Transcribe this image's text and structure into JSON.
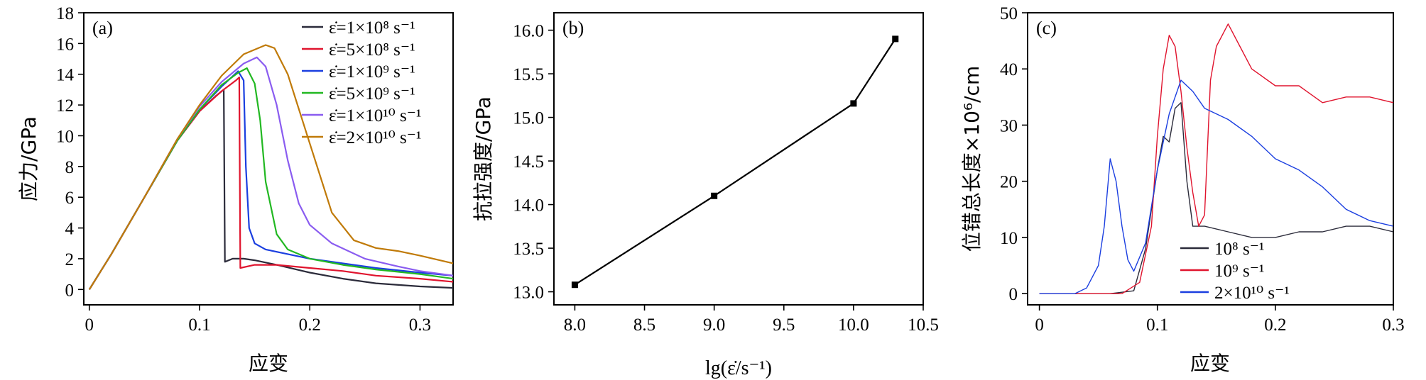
{
  "chart_data": [
    {
      "id": "a",
      "type": "line",
      "panel_label": "(a)",
      "xlabel": "应变",
      "ylabel": "应力/GPa",
      "xlim": [
        -0.005,
        0.33
      ],
      "ylim": [
        -1.0,
        18.0
      ],
      "xticks": [
        {
          "v": 0,
          "label": "0"
        },
        {
          "v": 0.1,
          "label": "0.1"
        },
        {
          "v": 0.2,
          "label": "0.2"
        },
        {
          "v": 0.3,
          "label": "0.3"
        }
      ],
      "yticks": [
        {
          "v": 0,
          "label": "0"
        },
        {
          "v": 2,
          "label": "2"
        },
        {
          "v": 4,
          "label": "4"
        },
        {
          "v": 6,
          "label": "6"
        },
        {
          "v": 8,
          "label": "8"
        },
        {
          "v": 10,
          "label": "10"
        },
        {
          "v": 12,
          "label": "12"
        },
        {
          "v": 14,
          "label": "14"
        },
        {
          "v": 16,
          "label": "16"
        },
        {
          "v": 18,
          "label": "18"
        }
      ],
      "legend_position": "top-right",
      "series": [
        {
          "name": "ε̇=1×10⁸ s⁻¹",
          "color": "#2b2b3a",
          "x": [
            0,
            0.02,
            0.05,
            0.08,
            0.1,
            0.115,
            0.122,
            0.123,
            0.13,
            0.14,
            0.15,
            0.17,
            0.2,
            0.23,
            0.26,
            0.3,
            0.33
          ],
          "y": [
            0,
            2.3,
            6.0,
            9.7,
            11.6,
            12.6,
            13.0,
            1.8,
            2.0,
            2.0,
            1.9,
            1.6,
            1.1,
            0.7,
            0.4,
            0.2,
            0.1
          ]
        },
        {
          "name": "ε̇=5×10⁸ s⁻¹",
          "color": "#e0142e",
          "x": [
            0,
            0.02,
            0.05,
            0.08,
            0.1,
            0.12,
            0.133,
            0.136,
            0.137,
            0.15,
            0.17,
            0.2,
            0.23,
            0.26,
            0.3,
            0.33
          ],
          "y": [
            0,
            2.3,
            6.0,
            9.7,
            11.6,
            12.9,
            13.6,
            13.8,
            1.4,
            1.6,
            1.6,
            1.4,
            1.2,
            0.9,
            0.7,
            0.5
          ]
        },
        {
          "name": "ε̇=1×10⁹ s⁻¹",
          "color": "#1b3fe0",
          "x": [
            0,
            0.02,
            0.05,
            0.08,
            0.1,
            0.12,
            0.135,
            0.14,
            0.142,
            0.145,
            0.15,
            0.16,
            0.18,
            0.2,
            0.23,
            0.26,
            0.3,
            0.33
          ],
          "y": [
            0,
            2.3,
            6.0,
            9.7,
            11.7,
            13.2,
            14.2,
            13.6,
            8.0,
            4.0,
            3.0,
            2.6,
            2.3,
            2.0,
            1.7,
            1.4,
            1.1,
            0.9
          ]
        },
        {
          "name": "ε̇=5×10⁹ s⁻¹",
          "color": "#22b822",
          "x": [
            0,
            0.02,
            0.05,
            0.08,
            0.1,
            0.12,
            0.135,
            0.143,
            0.15,
            0.155,
            0.16,
            0.17,
            0.18,
            0.2,
            0.23,
            0.26,
            0.3,
            0.33
          ],
          "y": [
            0,
            2.3,
            6.0,
            9.7,
            11.7,
            13.3,
            14.1,
            14.4,
            13.4,
            11.0,
            7.0,
            3.6,
            2.6,
            2.0,
            1.6,
            1.3,
            1.0,
            0.7
          ]
        },
        {
          "name": "ε̇=1×10¹⁰ s⁻¹",
          "color": "#8a5cf0",
          "x": [
            0,
            0.02,
            0.05,
            0.08,
            0.1,
            0.12,
            0.14,
            0.152,
            0.16,
            0.17,
            0.18,
            0.19,
            0.2,
            0.22,
            0.25,
            0.28,
            0.3,
            0.33
          ],
          "y": [
            0,
            2.3,
            6.0,
            9.8,
            11.9,
            13.5,
            14.7,
            15.1,
            14.5,
            12.0,
            8.4,
            5.6,
            4.2,
            3.0,
            2.0,
            1.5,
            1.2,
            0.9
          ]
        },
        {
          "name": "ε̇=2×10¹⁰ s⁻¹",
          "color": "#c07a08",
          "x": [
            0,
            0.02,
            0.05,
            0.08,
            0.1,
            0.12,
            0.14,
            0.16,
            0.168,
            0.18,
            0.2,
            0.22,
            0.24,
            0.26,
            0.28,
            0.3,
            0.33
          ],
          "y": [
            0,
            2.3,
            6.0,
            9.8,
            12.0,
            13.9,
            15.3,
            15.9,
            15.7,
            14.0,
            9.5,
            5.0,
            3.2,
            2.7,
            2.5,
            2.2,
            1.7
          ]
        }
      ]
    },
    {
      "id": "b",
      "type": "line",
      "panel_label": "(b)",
      "xlabel": "lg(ε̇/s⁻¹)",
      "ylabel": "抗拉强度/GPa",
      "xlim": [
        7.85,
        10.5
      ],
      "ylim": [
        12.85,
        16.2
      ],
      "xticks": [
        {
          "v": 8.0,
          "label": "8.0"
        },
        {
          "v": 8.5,
          "label": "8.5"
        },
        {
          "v": 9.0,
          "label": "9.0"
        },
        {
          "v": 9.5,
          "label": "9.5"
        },
        {
          "v": 10.0,
          "label": "10.0"
        },
        {
          "v": 10.5,
          "label": "10.5"
        }
      ],
      "yticks": [
        {
          "v": 13.0,
          "label": "13.0"
        },
        {
          "v": 13.5,
          "label": "13.5"
        },
        {
          "v": 14.0,
          "label": "14.0"
        },
        {
          "v": 14.5,
          "label": "14.5"
        },
        {
          "v": 15.0,
          "label": "15.0"
        },
        {
          "v": 15.5,
          "label": "15.5"
        },
        {
          "v": 16.0,
          "label": "16.0"
        }
      ],
      "series": [
        {
          "color": "#000000",
          "x": [
            8.0,
            9.0,
            10.0,
            10.3
          ],
          "y": [
            13.08,
            14.1,
            15.16,
            15.9
          ]
        }
      ]
    },
    {
      "id": "c",
      "type": "line",
      "panel_label": "(c)",
      "xlabel": "应变",
      "ylabel": "位错总长度×10⁶/cm",
      "xlim": [
        -0.01,
        0.3
      ],
      "ylim": [
        -2.0,
        50.0
      ],
      "xticks": [
        {
          "v": 0,
          "label": "0"
        },
        {
          "v": 0.1,
          "label": "0.1"
        },
        {
          "v": 0.2,
          "label": "0.2"
        },
        {
          "v": 0.3,
          "label": "0.3"
        }
      ],
      "yticks": [
        {
          "v": 0,
          "label": "0"
        },
        {
          "v": 10,
          "label": "10"
        },
        {
          "v": 20,
          "label": "20"
        },
        {
          "v": 30,
          "label": "30"
        },
        {
          "v": 40,
          "label": "40"
        },
        {
          "v": 50,
          "label": "50"
        }
      ],
      "legend_position": "bottom-left",
      "series": [
        {
          "name": "10⁸ s⁻¹",
          "color": "#2b2b3a",
          "x": [
            0,
            0.06,
            0.08,
            0.09,
            0.1,
            0.105,
            0.11,
            0.115,
            0.12,
            0.125,
            0.13,
            0.14,
            0.16,
            0.18,
            0.2,
            0.22,
            0.24,
            0.26,
            0.28,
            0.3
          ],
          "y": [
            0,
            0,
            0.5,
            8,
            22,
            28,
            27,
            33,
            34,
            20,
            12,
            12,
            11,
            10,
            10,
            11,
            11,
            12,
            12,
            11
          ]
        },
        {
          "name": "10⁹ s⁻¹",
          "color": "#e0142e",
          "x": [
            0,
            0.07,
            0.085,
            0.095,
            0.1,
            0.105,
            0.11,
            0.115,
            0.12,
            0.125,
            0.13,
            0.135,
            0.14,
            0.145,
            0.15,
            0.16,
            0.17,
            0.18,
            0.2,
            0.22,
            0.24,
            0.26,
            0.28,
            0.3
          ],
          "y": [
            0,
            0,
            2,
            12,
            28,
            40,
            46,
            44,
            36,
            26,
            18,
            12,
            14,
            38,
            44,
            48,
            44,
            40,
            37,
            37,
            34,
            35,
            35,
            34
          ]
        },
        {
          "name": "2×10¹⁰ s⁻¹",
          "color": "#1b3fe0",
          "x": [
            0,
            0.03,
            0.04,
            0.05,
            0.055,
            0.06,
            0.065,
            0.07,
            0.075,
            0.08,
            0.09,
            0.1,
            0.11,
            0.12,
            0.13,
            0.14,
            0.16,
            0.18,
            0.2,
            0.22,
            0.24,
            0.26,
            0.28,
            0.3
          ],
          "y": [
            0,
            0,
            1,
            5,
            12,
            24,
            20,
            12,
            6,
            4,
            9,
            22,
            32,
            38,
            36,
            33,
            31,
            28,
            24,
            22,
            19,
            15,
            13,
            12
          ]
        }
      ]
    }
  ]
}
